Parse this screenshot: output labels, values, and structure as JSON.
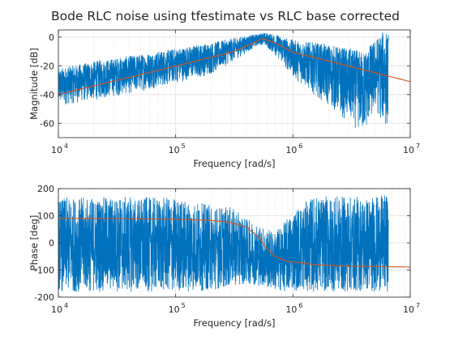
{
  "title": "Bode RLC noise using tfestimate vs RLC base corrected",
  "colors": {
    "estimate": "#0072BD",
    "model": "#D95319",
    "grid": "#dfdfdf",
    "axis": "#262626",
    "background": "#ffffff"
  },
  "chart_data": [
    {
      "type": "line",
      "xlabel": "Frequency [rad/s]",
      "ylabel": "Magnitude [dB]",
      "xscale": "log",
      "xlim": [
        10000,
        10000000
      ],
      "ylim": [
        -70,
        5
      ],
      "grid": true,
      "yticks": [
        {
          "value": 0,
          "label": "0"
        },
        {
          "value": -20,
          "label": "-20"
        },
        {
          "value": -40,
          "label": "-40"
        },
        {
          "value": -60,
          "label": "-60"
        }
      ],
      "xticks": [
        {
          "value": 10000,
          "base": "10",
          "exp": "4"
        },
        {
          "value": 100000,
          "base": "10",
          "exp": "5"
        },
        {
          "value": 1000000,
          "base": "10",
          "exp": "6"
        },
        {
          "value": 10000000,
          "base": "10",
          "exp": "7"
        }
      ],
      "series": [
        {
          "role": "estimate",
          "color": "#0072BD",
          "x": [
            10000,
            20000,
            50000,
            100000,
            200000,
            350000,
            500000,
            550000,
            700000,
            1000000,
            2000000,
            3000000,
            4000000,
            5000000,
            6000000,
            6500000
          ],
          "y_low": [
            -48,
            -44,
            -38,
            -32,
            -26,
            -14,
            -6,
            -5,
            -12,
            -28,
            -48,
            -60,
            -68,
            -52,
            -62,
            -66
          ],
          "y_high": [
            -22,
            -17,
            -12,
            -8,
            -4,
            0,
            2,
            3,
            2,
            -2,
            -5,
            -8,
            -10,
            -2,
            5,
            3
          ]
        },
        {
          "role": "model",
          "color": "#D95319",
          "x": [
            10000,
            30000,
            100000,
            300000,
            450000,
            550000,
            700000,
            1000000,
            3000000,
            10000000
          ],
          "y": [
            -40,
            -30.5,
            -20.2,
            -10.5,
            -4.5,
            -1,
            -4,
            -10.5,
            -20.2,
            -31
          ]
        }
      ]
    },
    {
      "type": "line",
      "xlabel": "Frequency [rad/s]",
      "ylabel": "Phase [deg]",
      "xscale": "log",
      "xlim": [
        10000,
        10000000
      ],
      "ylim": [
        -200,
        200
      ],
      "grid": true,
      "yticks": [
        {
          "value": 200,
          "label": "200"
        },
        {
          "value": 100,
          "label": "100"
        },
        {
          "value": 0,
          "label": "0"
        },
        {
          "value": -100,
          "label": "-100"
        },
        {
          "value": -200,
          "label": "-200"
        }
      ],
      "xticks": [
        {
          "value": 10000,
          "base": "10",
          "exp": "4"
        },
        {
          "value": 100000,
          "base": "10",
          "exp": "5"
        },
        {
          "value": 1000000,
          "base": "10",
          "exp": "6"
        },
        {
          "value": 10000000,
          "base": "10",
          "exp": "7"
        }
      ],
      "series": [
        {
          "role": "estimate",
          "color": "#0072BD",
          "x": [
            10000,
            30000,
            100000,
            200000,
            300000,
            400000,
            550000,
            700000,
            900000,
            1000000,
            1500000,
            3000000,
            5000000,
            6000000,
            6500000
          ],
          "y_low": [
            -180,
            -180,
            -180,
            -175,
            -160,
            -150,
            -160,
            -175,
            -180,
            -175,
            -180,
            -180,
            -180,
            -175,
            -180
          ],
          "y_high": [
            165,
            170,
            165,
            140,
            130,
            90,
            60,
            40,
            90,
            120,
            170,
            170,
            170,
            175,
            175
          ]
        },
        {
          "role": "model",
          "color": "#D95319",
          "x": [
            10000,
            30000,
            100000,
            200000,
            300000,
            400000,
            500000,
            550000,
            600000,
            700000,
            900000,
            1500000,
            3000000,
            10000000
          ],
          "y": [
            90,
            89.5,
            87.5,
            83,
            75,
            58,
            25,
            0,
            -20,
            -50,
            -68,
            -80,
            -86,
            -89
          ]
        }
      ]
    }
  ]
}
